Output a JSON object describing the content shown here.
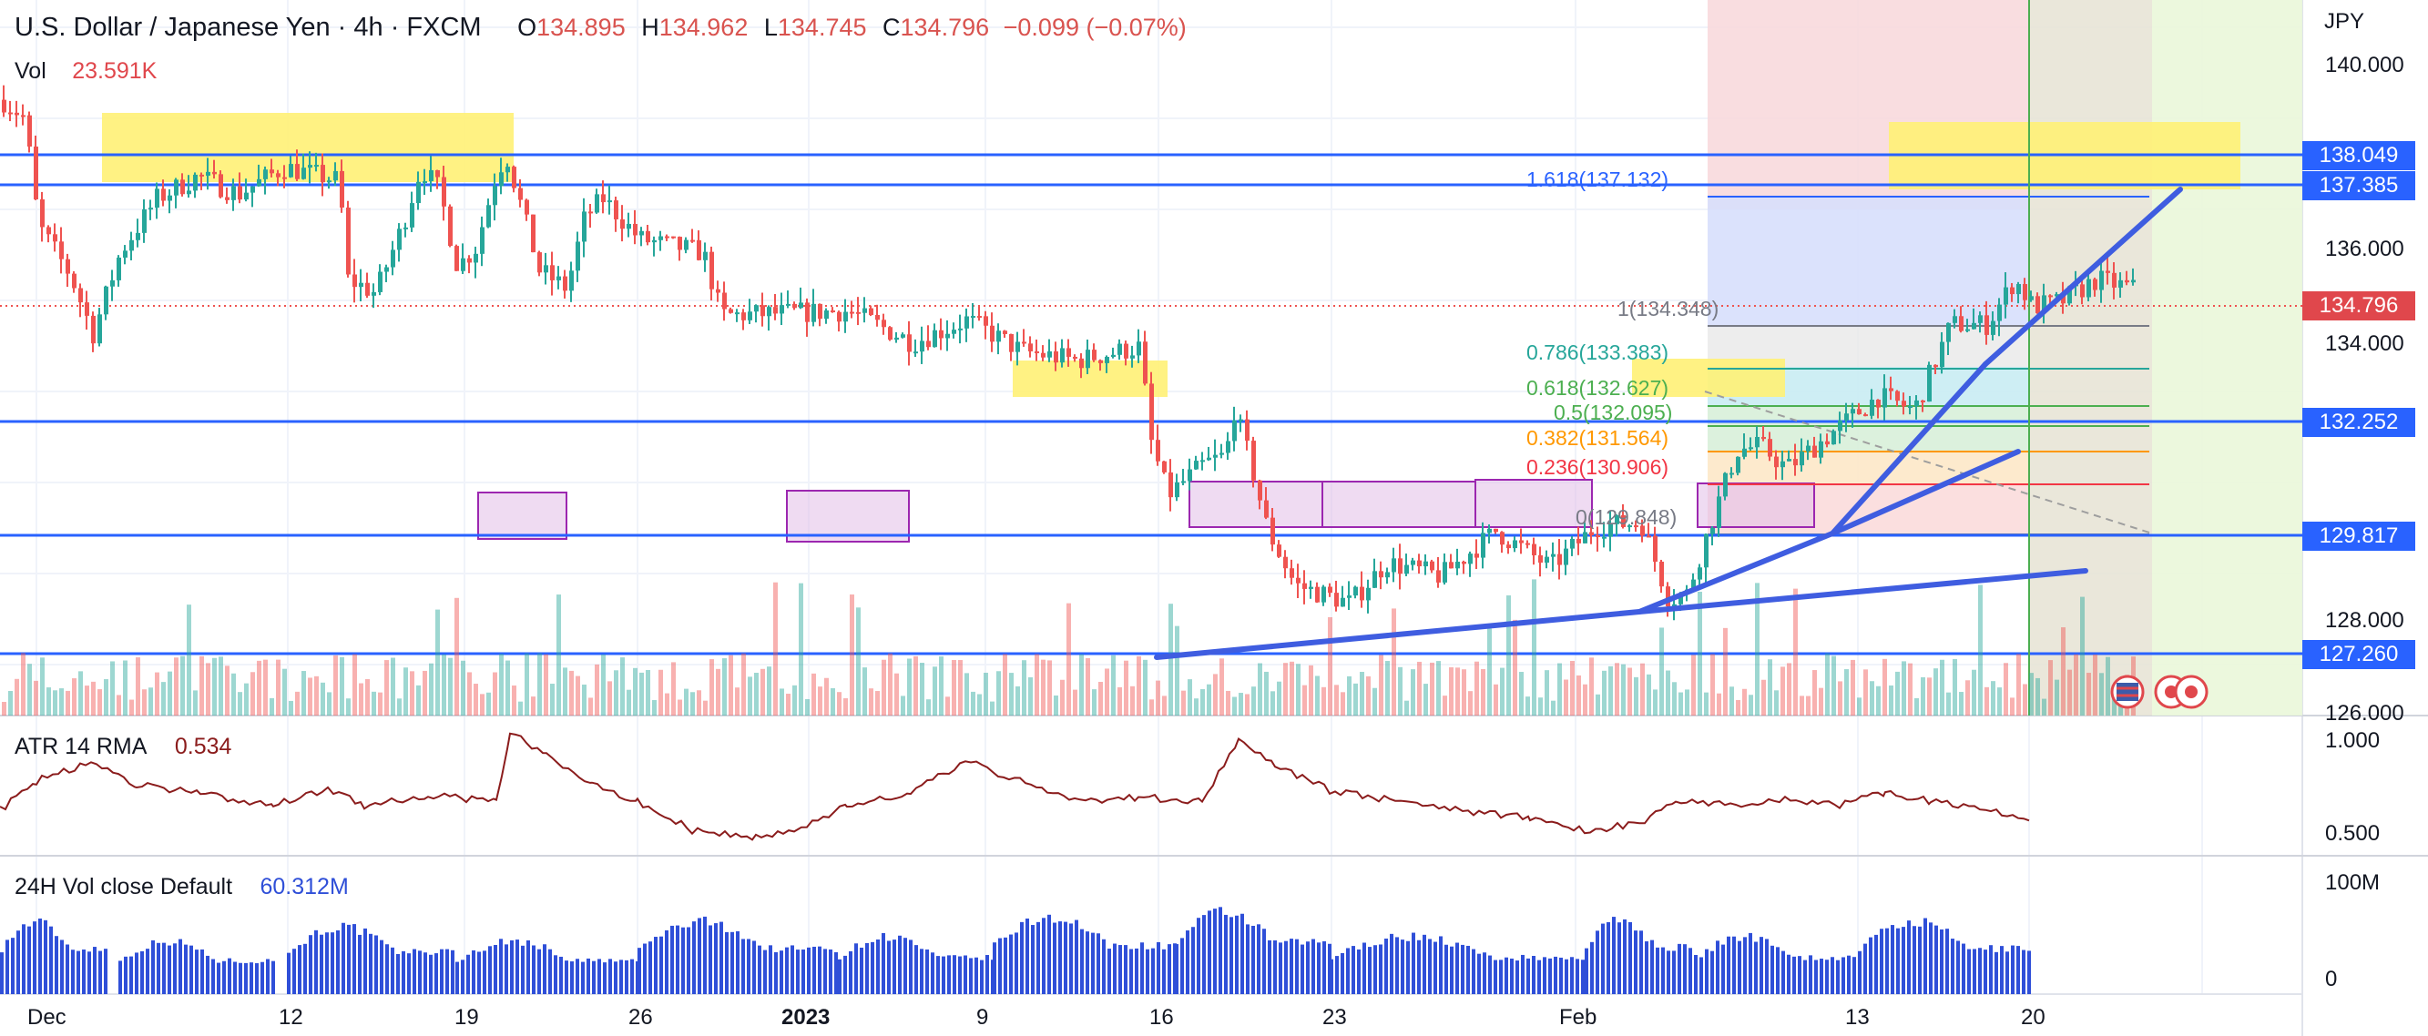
{
  "header": {
    "symbol": "U.S. Dollar / Japanese Yen · 4h · FXCM",
    "o_key": "O",
    "o_val": "134.895",
    "h_key": "H",
    "h_val": "134.962",
    "l_key": "L",
    "l_val": "134.745",
    "c_key": "C",
    "c_val": "134.796",
    "change": "−0.099 (−0.07%)"
  },
  "volume": {
    "label": "Vol",
    "value": "23.591K"
  },
  "atr": {
    "label": "ATR 14 RMA",
    "value": "0.534",
    "color": "#8b1c1c"
  },
  "vol24": {
    "label": "24H Vol close Default",
    "value": "60.312M",
    "color": "#2f4fd8"
  },
  "price_axis": {
    "currency": "JPY",
    "ticks": [
      "140.000",
      "136.000",
      "134.000",
      "128.000",
      "126.000"
    ],
    "tags": [
      {
        "text": "138.049",
        "color": "#2962ff"
      },
      {
        "text": "137.385",
        "color": "#2962ff"
      },
      {
        "text": "134.796",
        "color": "#e0474c"
      },
      {
        "text": "132.252",
        "color": "#2962ff"
      },
      {
        "text": "129.817",
        "color": "#2962ff"
      },
      {
        "text": "127.260",
        "color": "#2962ff"
      }
    ]
  },
  "atr_axis": [
    "1.000",
    "0.500"
  ],
  "vol_axis": [
    "100M",
    "0"
  ],
  "time_axis": [
    "Dec",
    "12",
    "19",
    "26",
    "2023",
    "9",
    "16",
    "23",
    "Feb",
    "13",
    "20"
  ],
  "fib_levels": [
    {
      "text": "1.618(137.132)",
      "color": "#2962ff"
    },
    {
      "text": "1(134.348)",
      "color": "#787b86"
    },
    {
      "text": "0.786(133.383)",
      "color": "#26a69a"
    },
    {
      "text": "0.618(132.627)",
      "color": "#4caf50"
    },
    {
      "text": "0.5(132.095)",
      "color": "#4caf50"
    },
    {
      "text": "0.382(131.564)",
      "color": "#ff9800"
    },
    {
      "text": "0.236(130.906)",
      "color": "#f23645"
    },
    {
      "text": "0(129.848)",
      "color": "#787b86"
    }
  ],
  "colors": {
    "up": "#26a69a",
    "down": "#ef5350",
    "hline": "#2962ff",
    "trend": "#2f4fd8",
    "highlight": "#ffeb3b",
    "box": "#9c27b0"
  },
  "chart_data": {
    "type": "candlestick",
    "title": "U.S. Dollar / Japanese Yen · 4h · FXCM",
    "price_levels": [
      138.049,
      137.385,
      132.252,
      129.817,
      127.26
    ],
    "last_price": 134.796,
    "fib_ratios": [
      1.618,
      1,
      0.786,
      0.618,
      0.5,
      0.382,
      0.236,
      0
    ],
    "y_range": [
      125.5,
      141.2
    ],
    "close_path": [
      {
        "t": 0,
        "p": 139.0
      },
      {
        "t": 25,
        "p": 138.6
      },
      {
        "t": 40,
        "p": 136.2
      },
      {
        "t": 75,
        "p": 135.1
      },
      {
        "t": 100,
        "p": 133.8
      },
      {
        "t": 130,
        "p": 135.6
      },
      {
        "t": 170,
        "p": 136.8
      },
      {
        "t": 215,
        "p": 137.3
      },
      {
        "t": 260,
        "p": 136.9
      },
      {
        "t": 310,
        "p": 137.5
      },
      {
        "t": 370,
        "p": 137.2
      },
      {
        "t": 380,
        "p": 135.0
      },
      {
        "t": 410,
        "p": 134.7
      },
      {
        "t": 440,
        "p": 136.2
      },
      {
        "t": 460,
        "p": 137.5
      },
      {
        "t": 480,
        "p": 137.0
      },
      {
        "t": 500,
        "p": 135.3
      },
      {
        "t": 520,
        "p": 135.7
      },
      {
        "t": 545,
        "p": 137.5
      },
      {
        "t": 555,
        "p": 137.7
      },
      {
        "t": 590,
        "p": 135.2
      },
      {
        "t": 620,
        "p": 134.8
      },
      {
        "t": 640,
        "p": 136.4
      },
      {
        "t": 660,
        "p": 136.8
      },
      {
        "t": 700,
        "p": 135.9
      },
      {
        "t": 770,
        "p": 135.6
      },
      {
        "t": 790,
        "p": 134.2
      },
      {
        "t": 930,
        "p": 134.3
      },
      {
        "t": 1000,
        "p": 133.6
      },
      {
        "t": 1060,
        "p": 134.1
      },
      {
        "t": 1120,
        "p": 133.4
      },
      {
        "t": 1180,
        "p": 133.2
      },
      {
        "t": 1250,
        "p": 133.5
      },
      {
        "t": 1260,
        "p": 131.5
      },
      {
        "t": 1280,
        "p": 130.2
      },
      {
        "t": 1320,
        "p": 130.9
      },
      {
        "t": 1345,
        "p": 131.1
      },
      {
        "t": 1350,
        "p": 132.3
      },
      {
        "t": 1370,
        "p": 131.0
      },
      {
        "t": 1390,
        "p": 129.4
      },
      {
        "t": 1420,
        "p": 128.2
      },
      {
        "t": 1480,
        "p": 127.8
      },
      {
        "t": 1520,
        "p": 128.7
      },
      {
        "t": 1580,
        "p": 128.4
      },
      {
        "t": 1640,
        "p": 129.4
      },
      {
        "t": 1700,
        "p": 128.6
      },
      {
        "t": 1750,
        "p": 129.5
      },
      {
        "t": 1800,
        "p": 129.6
      },
      {
        "t": 1830,
        "p": 127.9
      },
      {
        "t": 1850,
        "p": 128.0
      },
      {
        "t": 1880,
        "p": 129.8
      },
      {
        "t": 1905,
        "p": 131.2
      },
      {
        "t": 1930,
        "p": 131.3
      },
      {
        "t": 1960,
        "p": 130.8
      },
      {
        "t": 2010,
        "p": 131.6
      },
      {
        "t": 2060,
        "p": 132.4
      },
      {
        "t": 2100,
        "p": 132.1
      },
      {
        "t": 2140,
        "p": 134.0
      },
      {
        "t": 2180,
        "p": 134.0
      },
      {
        "t": 2210,
        "p": 135.0
      },
      {
        "t": 2230,
        "p": 134.4
      },
      {
        "t": 2260,
        "p": 134.5
      },
      {
        "t": 2300,
        "p": 135.0
      },
      {
        "t": 2340,
        "p": 134.8
      }
    ]
  }
}
